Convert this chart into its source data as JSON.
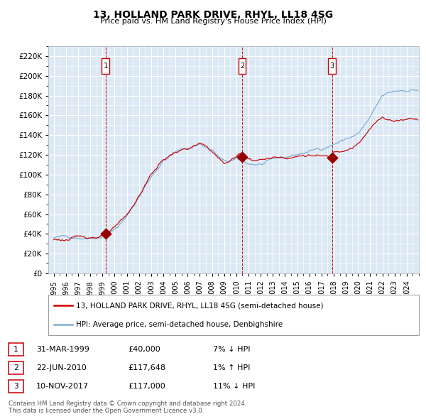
{
  "title": "13, HOLLAND PARK DRIVE, RHYL, LL18 4SG",
  "subtitle": "Price paid vs. HM Land Registry's House Price Index (HPI)",
  "sale_dates_num": [
    1999.25,
    2010.47,
    2017.86
  ],
  "sale_prices": [
    40000,
    117648,
    117000
  ],
  "sale_labels": [
    "1",
    "2",
    "3"
  ],
  "hpi_direction": [
    "↓",
    "↑",
    "↓"
  ],
  "hpi_pct": [
    "7%",
    "1%",
    "11%"
  ],
  "table_dates": [
    "31-MAR-1999",
    "22-JUN-2010",
    "10-NOV-2017"
  ],
  "table_prices": [
    "£40,000",
    "£117,648",
    "£117,000"
  ],
  "legend_property": "13, HOLLAND PARK DRIVE, RHYL, LL18 4SG (semi-detached house)",
  "legend_hpi": "HPI: Average price, semi-detached house, Denbighshire",
  "line_color_red": "#cc0000",
  "line_color_blue": "#7aadcf",
  "background_color": "#dce9f5",
  "grid_color": "#ffffff",
  "ylim": [
    0,
    230000
  ],
  "ytick_step": 20000,
  "footer": "Contains HM Land Registry data © Crown copyright and database right 2024.\nThis data is licensed under the Open Government Licence v3.0.",
  "marker_color": "#990000"
}
